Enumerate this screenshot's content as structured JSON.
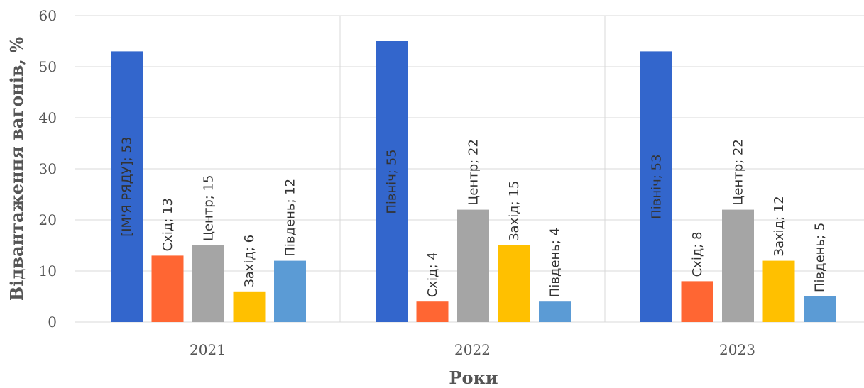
{
  "chart_data": {
    "type": "bar",
    "categories": [
      "2021",
      "2022",
      "2023"
    ],
    "xlabel": "Роки",
    "ylabel": "Відвантаження вагонів, %",
    "ylim": [
      0,
      60
    ],
    "yticks": [
      "0",
      "10",
      "20",
      "30",
      "40",
      "50",
      "60"
    ],
    "grid": true,
    "legend": "none",
    "bar_colors": [
      "#3366cc",
      "#ff6633",
      "#a5a5a5",
      "#ffc000",
      "#5b9bd5"
    ],
    "groups": [
      {
        "category": "2021",
        "bars": [
          {
            "value": 53,
            "label": "[ІМ'Я РЯДУ]; 53"
          },
          {
            "value": 13,
            "label": "Схід; 13"
          },
          {
            "value": 15,
            "label": "Центр; 15"
          },
          {
            "value": 6,
            "label": "Захід; 6"
          },
          {
            "value": 12,
            "label": "Південь; 12"
          }
        ]
      },
      {
        "category": "2022",
        "bars": [
          {
            "value": 55,
            "label": "Північ; 55"
          },
          {
            "value": 4,
            "label": "Схід; 4"
          },
          {
            "value": 22,
            "label": "Центр; 22"
          },
          {
            "value": 15,
            "label": "Захід; 15"
          },
          {
            "value": 4,
            "label": "Південь; 4"
          }
        ]
      },
      {
        "category": "2023",
        "bars": [
          {
            "value": 53,
            "label": "Північ; 53"
          },
          {
            "value": 8,
            "label": "Схід; 8"
          },
          {
            "value": 22,
            "label": "Центр; 22"
          },
          {
            "value": 12,
            "label": "Захід; 12"
          },
          {
            "value": 5,
            "label": "Південь; 5"
          }
        ]
      }
    ]
  }
}
